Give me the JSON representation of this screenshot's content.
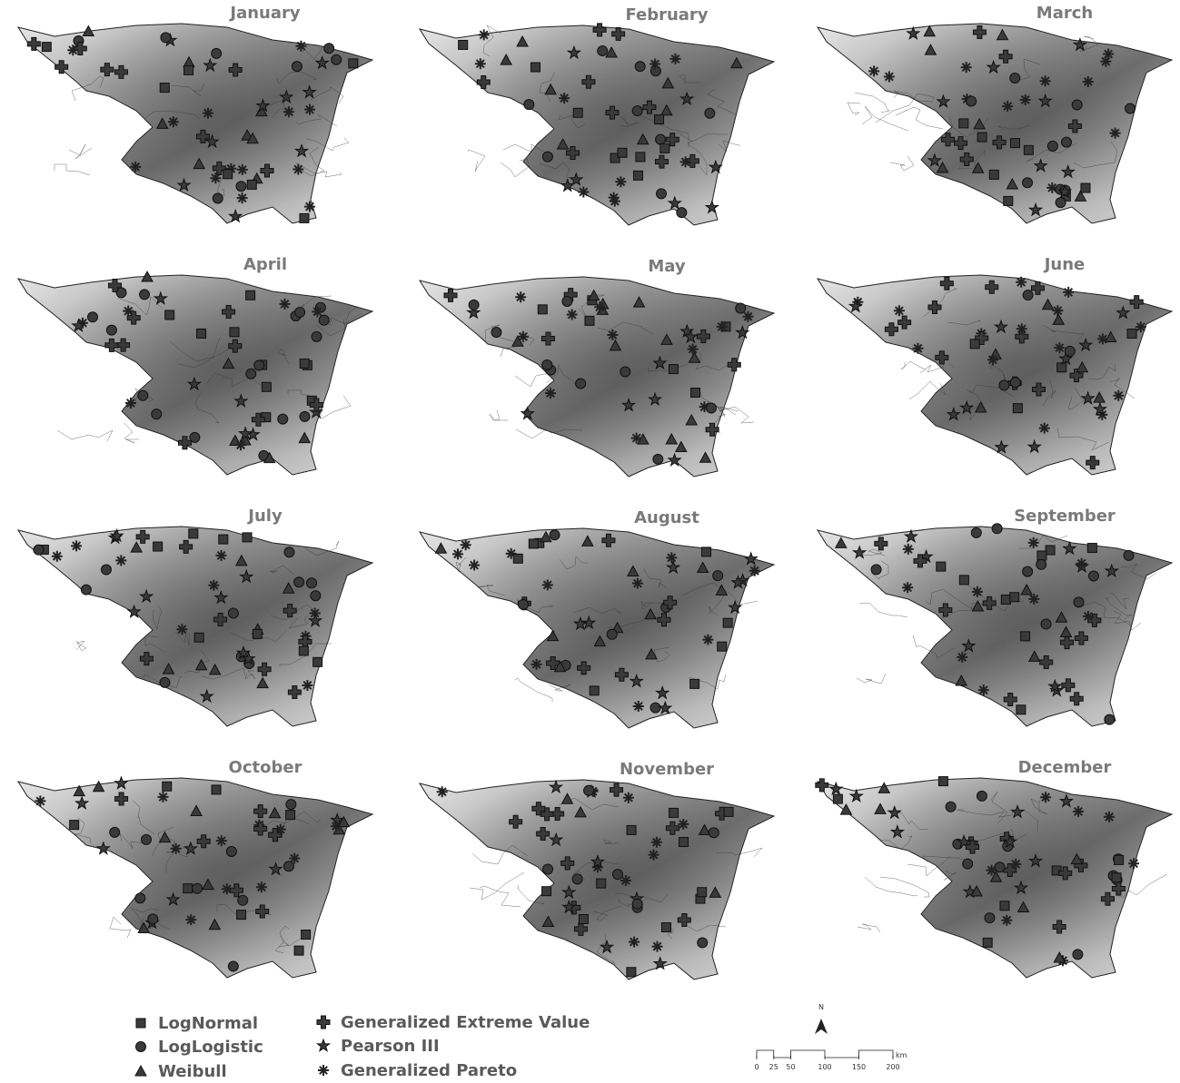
{
  "panels": [
    {
      "title": "January"
    },
    {
      "title": "February"
    },
    {
      "title": "March"
    },
    {
      "title": "April"
    },
    {
      "title": "May"
    },
    {
      "title": "June"
    },
    {
      "title": "July"
    },
    {
      "title": "August"
    },
    {
      "title": "September"
    },
    {
      "title": "October"
    },
    {
      "title": "November"
    },
    {
      "title": "December"
    }
  ],
  "legend": {
    "items": [
      "LogNormal",
      "LogLogistic",
      "Weibull",
      "Generalized Extreme Value",
      "Pearson III",
      "Generalized Pareto"
    ]
  },
  "scale": {
    "ticks": [
      0,
      25,
      50,
      100,
      150,
      200
    ],
    "unit": "km"
  },
  "north": "N"
}
